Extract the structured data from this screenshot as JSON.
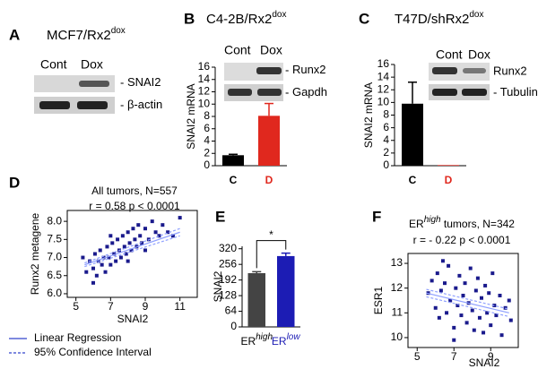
{
  "panel_labels": [
    "A",
    "B",
    "C",
    "D",
    "E",
    "F"
  ],
  "blots": [
    {
      "title": "MCF7/Rx2",
      "title_sup": "dox",
      "lanes": [
        "Cont",
        "Dox"
      ],
      "bands": [
        "SNAI2",
        "β-actin"
      ]
    },
    {
      "title": "C4-2B/Rx2",
      "title_sup": "dox",
      "lanes": [
        "Cont",
        "Dox"
      ],
      "bands": [
        "Runx2",
        "Gapdh"
      ]
    },
    {
      "title": "T47D/shRx2",
      "title_sup": "dox",
      "lanes": [
        "Cont",
        "Dox"
      ],
      "bands": [
        "Runx2",
        "Tubulin"
      ]
    }
  ],
  "legend": [
    "Linear Regression",
    "95% Confidence Interval"
  ],
  "chart_data": [
    {
      "type": "bar",
      "categories": [
        "C",
        "D"
      ],
      "category_colors": [
        "#000000",
        "#e0281e"
      ],
      "values": [
        1.7,
        8.1
      ],
      "errors": [
        0.15,
        2.0
      ],
      "colors": [
        "#000000",
        "#e0281e"
      ],
      "ylabel": "SNAI2 mRNA",
      "ylim": [
        0,
        16
      ],
      "yticks": [
        0,
        2,
        4,
        6,
        8,
        10,
        12,
        14,
        16
      ]
    },
    {
      "type": "bar",
      "categories": [
        "C",
        "D"
      ],
      "category_colors": [
        "#000000",
        "#e0281e"
      ],
      "values": [
        9.8,
        0.1
      ],
      "errors": [
        3.4,
        null
      ],
      "colors": [
        "#000000",
        "#e0281e"
      ],
      "ylabel": "SNAI2 mRNA",
      "ylim": [
        0,
        16
      ],
      "yticks": [
        0,
        2,
        4,
        6,
        8,
        10,
        12,
        14,
        16
      ]
    },
    {
      "type": "scatter",
      "annotations": [
        "All tumors, N=557",
        "r = 0.58  p < 0.0001"
      ],
      "xlabel": "SNAI2",
      "ylabel": "Runx2 metagene",
      "color": "#1a1a8c",
      "xlim": [
        4.5,
        12
      ],
      "xticks": [
        5,
        7,
        9,
        11
      ],
      "ylim": [
        5.9,
        8.3
      ],
      "yticks": [
        {
          "value": 6,
          "label": "6.0"
        },
        6.5,
        {
          "value": 7,
          "label": "7.0"
        },
        7.5,
        {
          "value": 8,
          "label": "8.0"
        }
      ],
      "x": [
        5.6,
        5.8,
        6.0,
        6.1,
        6.2,
        6.3,
        6.4,
        6.5,
        6.6,
        6.7,
        6.8,
        6.9,
        7.0,
        7.1,
        7.2,
        7.3,
        7.4,
        7.5,
        7.6,
        7.7,
        7.8,
        7.9,
        8.0,
        8.1,
        8.2,
        8.3,
        8.4,
        8.5,
        8.6,
        8.7,
        8.8,
        9.0,
        9.2,
        9.4,
        9.6,
        9.8,
        10.0,
        10.3,
        10.6,
        11.0,
        6.0,
        7.0,
        8.0,
        9.0,
        5.4
      ],
      "values": [
        6.6,
        6.9,
        6.7,
        7.1,
        6.5,
        6.9,
        7.2,
        6.8,
        7.0,
        6.6,
        7.3,
        7.0,
        6.8,
        7.4,
        7.1,
        6.9,
        7.5,
        7.2,
        7.0,
        7.6,
        7.3,
        7.1,
        7.7,
        7.4,
        7.2,
        7.8,
        7.5,
        7.3,
        7.9,
        7.6,
        7.4,
        7.8,
        7.5,
        8.0,
        7.7,
        7.6,
        7.9,
        7.7,
        7.6,
        8.1,
        6.3,
        7.6,
        6.9,
        7.2,
        7.0
      ],
      "fit": {
        "x": [
          5.5,
          11
        ],
        "y": [
          6.8,
          7.7
        ]
      },
      "ci_upper": {
        "x": [
          5.5,
          11
        ],
        "y": [
          6.85,
          7.8
        ]
      },
      "ci_lower": {
        "x": [
          5.5,
          11
        ],
        "y": [
          6.75,
          7.6
        ]
      }
    },
    {
      "type": "bar",
      "categories": [
        "ER",
        "ER"
      ],
      "category_sups": [
        "high",
        "low"
      ],
      "category_colors": [
        "#000000",
        "#1c1cb4"
      ],
      "values": [
        220,
        290
      ],
      "errors": [
        6,
        12
      ],
      "colors": [
        "#444444",
        "#1c1cb4"
      ],
      "ylabel": "SNAI2",
      "significance": "*",
      "ylim": [
        0,
        330
      ],
      "yticks": [
        0,
        64,
        128,
        192,
        256,
        320
      ]
    },
    {
      "type": "scatter",
      "title": "ER",
      "title_sup": "high",
      "title_rest": " tumors, N=342",
      "annotations": [
        "r = - 0.22  p < 0.0001"
      ],
      "xlabel": "SNAI2",
      "ylabel": "ESR1",
      "color": "#1a1a8c",
      "xlim": [
        4.5,
        10.5
      ],
      "xticks": [
        5,
        7,
        9
      ],
      "ylim": [
        9.6,
        13.4
      ],
      "yticks": [
        10,
        11,
        12,
        13
      ],
      "x": [
        5.6,
        5.8,
        6.0,
        6.1,
        6.2,
        6.3,
        6.5,
        6.6,
        6.7,
        6.8,
        7.0,
        7.1,
        7.2,
        7.3,
        7.4,
        7.5,
        7.6,
        7.7,
        7.8,
        7.9,
        8.0,
        8.1,
        8.2,
        8.3,
        8.4,
        8.5,
        8.6,
        8.7,
        8.8,
        8.9,
        9.0,
        9.1,
        9.2,
        9.3,
        9.5,
        9.6,
        9.8,
        10.0,
        10.1,
        6.4,
        7.0
      ],
      "values": [
        11.8,
        12.3,
        11.2,
        12.6,
        10.8,
        11.9,
        12.2,
        11.0,
        12.9,
        11.5,
        10.4,
        12.0,
        11.3,
        12.5,
        10.9,
        11.7,
        12.2,
        10.6,
        11.4,
        12.8,
        11.1,
        10.3,
        11.9,
        12.4,
        10.8,
        11.6,
        10.2,
        12.1,
        11.0,
        11.8,
        10.5,
        12.6,
        11.3,
        10.9,
        11.7,
        10.1,
        11.2,
        11.5,
        10.7,
        13.1,
        9.9
      ],
      "fit": {
        "x": [
          5.5,
          10
        ],
        "y": [
          11.8,
          11.0
        ]
      },
      "ci_upper": {
        "x": [
          5.5,
          10
        ],
        "y": [
          11.95,
          11.15
        ]
      },
      "ci_lower": {
        "x": [
          5.5,
          10
        ],
        "y": [
          11.65,
          10.85
        ]
      }
    }
  ]
}
